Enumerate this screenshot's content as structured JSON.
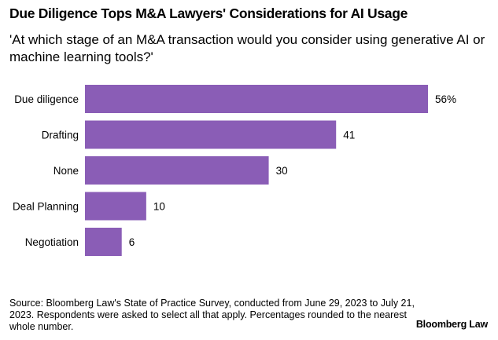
{
  "title": "Due Diligence Tops M&A Lawyers' Considerations for AI Usage",
  "subtitle": "'At which stage of an M&A transaction would you consider using generative AI or machine learning tools?'",
  "source": "Source: Bloomberg Law's State of Practice Survey, conducted from June 29, 2023 to July 21, 2023. Respondents were asked to select all that apply. Percentages rounded to the nearest whole number.",
  "brand": "Bloomberg Law",
  "colors": {
    "bar": "#8a5db6"
  },
  "chart_data": {
    "type": "bar",
    "orientation": "horizontal",
    "categories": [
      "Due diligence",
      "Drafting",
      "None",
      "Deal Planning",
      "Negotiation"
    ],
    "values": [
      56,
      41,
      30,
      10,
      6
    ],
    "value_labels": [
      "56%",
      "41",
      "30",
      "10",
      "6"
    ],
    "unit": "%",
    "xlim": [
      0,
      56
    ],
    "grid": false,
    "title": "Due Diligence Tops M&A Lawyers' Considerations for AI Usage"
  }
}
